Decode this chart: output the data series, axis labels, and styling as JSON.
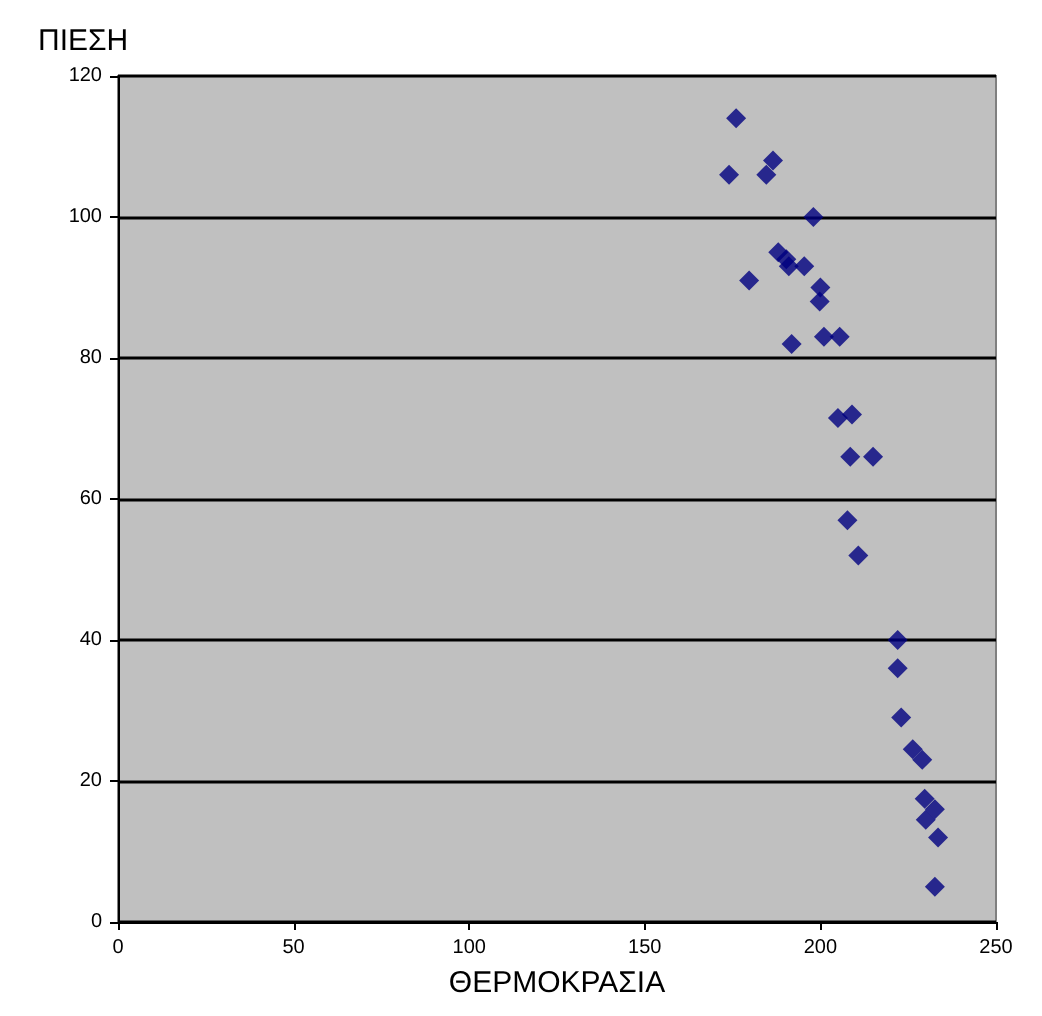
{
  "chart_data": {
    "type": "scatter",
    "xlabel": "ΘΕΡΜΟΚΡΑΣΙΑ",
    "ylabel": "ΠΙΕΣΗ",
    "x": [
      176,
      174,
      186.5,
      184.6,
      198,
      188,
      190.3,
      191,
      195.4,
      179.7,
      200,
      199.8,
      201,
      205.5,
      191.8,
      205,
      209,
      208.5,
      215,
      207.7,
      210.8,
      222,
      222,
      223,
      226.3,
      229,
      229.7,
      232.6,
      230,
      233.5,
      232.6
    ],
    "series": [
      {
        "color": "#000080",
        "values": [
          114,
          106,
          108,
          106,
          100,
          95,
          94,
          93,
          93,
          91,
          90,
          88,
          83,
          83,
          82,
          71.5,
          72,
          66,
          66,
          57,
          52,
          40,
          36,
          29,
          24.5,
          23,
          17.5,
          16,
          14.5,
          12,
          5
        ]
      }
    ],
    "xlim": [
      0,
      250
    ],
    "xticks": [
      0,
      50,
      100,
      150,
      200,
      250
    ],
    "ylim": [
      0,
      120
    ],
    "yticks": [
      0,
      20,
      40,
      60,
      80,
      100,
      120
    ],
    "grid": "y",
    "marker": "diamond"
  }
}
